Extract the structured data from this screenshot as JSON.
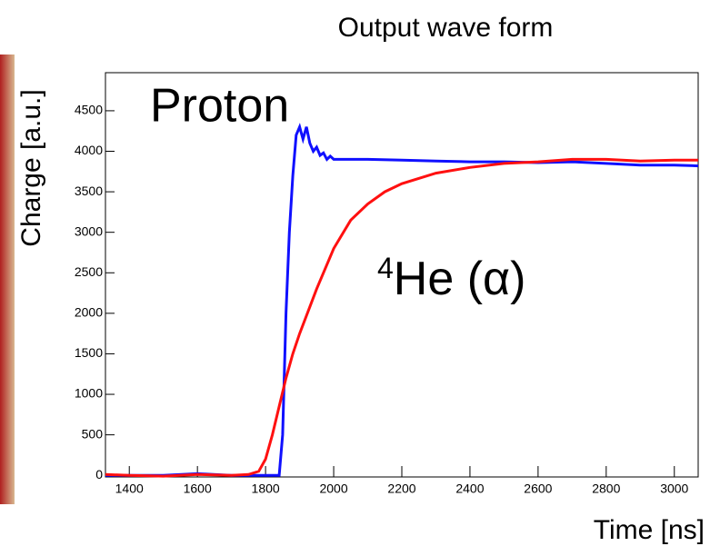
{
  "chart_data": {
    "type": "line",
    "title": "Output wave form",
    "x_label": "Time [ns]",
    "y_label": "Charge [a.u.]",
    "annotations": [
      {
        "text": "Proton",
        "color": "#1010ff"
      },
      {
        "sup": "4",
        "text": "He (α)",
        "color": "#ff1010"
      }
    ],
    "xlim": [
      1330,
      3070
    ],
    "xticks": [
      1400,
      1600,
      1800,
      2000,
      2200,
      2400,
      2600,
      2800,
      3000
    ],
    "ylim": [
      -20,
      4970
    ],
    "yticks": [
      0,
      500,
      1000,
      1500,
      2000,
      2500,
      3000,
      3500,
      4000,
      4500
    ],
    "series": [
      {
        "color": "#1010ff",
        "x": [
          1330,
          1500,
          1600,
          1700,
          1800,
          1840,
          1850,
          1860,
          1870,
          1880,
          1890,
          1900,
          1910,
          1920,
          1930,
          1940,
          1950,
          1960,
          1970,
          1980,
          1990,
          2000,
          2050,
          2100,
          2200,
          2300,
          2400,
          2500,
          2600,
          2700,
          2800,
          2900,
          3000,
          3070
        ],
        "values": [
          0,
          0,
          20,
          0,
          0,
          0,
          500,
          2000,
          3000,
          3700,
          4200,
          4300,
          4150,
          4300,
          4100,
          4000,
          4050,
          3950,
          3980,
          3900,
          3940,
          3900,
          3900,
          3900,
          3890,
          3880,
          3870,
          3870,
          3860,
          3870,
          3850,
          3830,
          3830,
          3820
        ]
      },
      {
        "color": "#ff1010",
        "x": [
          1330,
          1400,
          1500,
          1600,
          1700,
          1750,
          1780,
          1800,
          1820,
          1840,
          1860,
          1880,
          1900,
          1950,
          2000,
          2050,
          2100,
          2150,
          2200,
          2300,
          2400,
          2500,
          2600,
          2700,
          2800,
          2900,
          3000,
          3070
        ],
        "values": [
          10,
          0,
          -10,
          10,
          0,
          10,
          50,
          200,
          500,
          850,
          1200,
          1500,
          1750,
          2300,
          2800,
          3150,
          3350,
          3500,
          3600,
          3730,
          3800,
          3850,
          3870,
          3900,
          3900,
          3880,
          3890,
          3890
        ]
      }
    ]
  }
}
